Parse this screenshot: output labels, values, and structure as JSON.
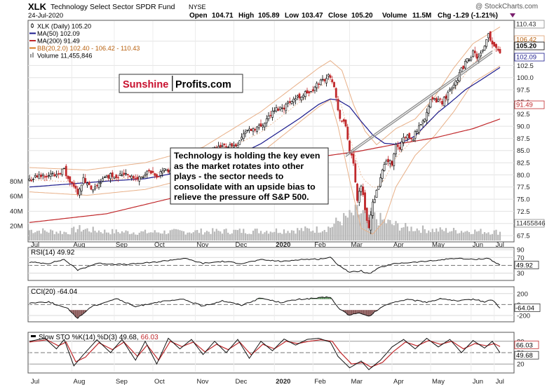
{
  "header": {
    "symbol": "XLK",
    "fund_name": "Technology Select Sector SPDR Fund",
    "exchange": "NYSE",
    "date": "24-Jul-2020",
    "watermark": "@ StockCharts.com",
    "ohlc": {
      "open_label": "Open",
      "open": "104.71",
      "high_label": "High",
      "high": "105.89",
      "low_label": "Low",
      "low": "103.47",
      "close_label": "Close",
      "close": "105.20",
      "volume_label": "Volume",
      "volume": "11.5M",
      "chg_label": "Chg",
      "chg": "-1.29 (-1.21%)"
    }
  },
  "legend": [
    {
      "label": "XLK (Daily) 105.20",
      "color": "#000000",
      "marker": "candle"
    },
    {
      "label": "MA(50) 102.09",
      "color": "#1a1a8c",
      "marker": "line"
    },
    {
      "label": "MA(200) 91.49",
      "color": "#c0282b",
      "marker": "line"
    },
    {
      "label": "BB(20,2.0) 102.40 - 106.42 - 110.43",
      "color": "#d97a1e",
      "marker": "line"
    },
    {
      "label": "Volume 11,455,846",
      "color": "#808080",
      "marker": "bar"
    }
  ],
  "brand": {
    "part1": "Sunshine",
    "part2": "Profits.com",
    "color1": "#c8102e",
    "color2": "#000000"
  },
  "annotation": "Technology is holding the key even as the market rotates into other plays - the sector needs to consolidate with an upside bias to relieve the pressure off S&P 500.",
  "colors": {
    "up_candle": "#000000",
    "down_candle": "#c0282b",
    "ma50": "#1a1a8c",
    "ma200": "#c0282b",
    "bb": "#e0a070",
    "volume": "#b8b8b8",
    "osc_fill": "#3a7d3a",
    "osc_fill_neg": "#7a3a3a"
  },
  "chart_data": [
    {
      "type": "candlestick",
      "title": "XLK Technology Select Sector SPDR Fund NYSE",
      "x_labels": [
        "Jul",
        "Aug",
        "Sep",
        "Oct",
        "Nov",
        "Dec",
        "2020",
        "Feb",
        "Mar",
        "Apr",
        "May",
        "Jun",
        "Jul"
      ],
      "y_ticks": [
        67.5,
        70.0,
        72.5,
        75.0,
        77.5,
        80.0,
        82.5,
        85.0,
        87.5,
        90.0,
        92.5,
        95.0,
        97.5,
        100.0,
        102.5,
        107.5
      ],
      "y_tick_labels": [
        "67.5",
        "70.0",
        "72.5",
        "75.0",
        "77.5",
        "80.0",
        "82.5",
        "85.0",
        "87.5",
        "90.0",
        "92.5",
        "95.0",
        "97.5",
        "100.0",
        "102.5",
        "107.5"
      ],
      "ylim": [
        66.5,
        111.5
      ],
      "right_tags": [
        {
          "label": "110.43",
          "value": 110.43,
          "color": "#ffffff"
        },
        {
          "label": "106.42",
          "value": 106.42,
          "color": "#ffffff"
        },
        {
          "label": "105.20",
          "value": 105.2,
          "color": "#ffffff"
        },
        {
          "label": "102.09",
          "value": 102.09,
          "color": "#ffffff"
        },
        {
          "label": "91.49",
          "value": 91.49,
          "color": "#ffffff"
        },
        {
          "label": "11455846",
          "value": 67.8,
          "color": "#ffffff"
        }
      ],
      "volume_axis_labels": [
        "80M",
        "60M",
        "40M",
        "20M"
      ],
      "close_anchors": [
        [
          0,
          79
        ],
        [
          3,
          79.5
        ],
        [
          8,
          80
        ],
        [
          13,
          80
        ],
        [
          16,
          80.7
        ],
        [
          18,
          81
        ],
        [
          20,
          79
        ],
        [
          25,
          76.5
        ],
        [
          28,
          79
        ],
        [
          33,
          76.5
        ],
        [
          36,
          78.5
        ],
        [
          42,
          80
        ],
        [
          46,
          79.8
        ],
        [
          50,
          80.5
        ],
        [
          55,
          79
        ],
        [
          62,
          80.5
        ],
        [
          66,
          79.3
        ],
        [
          70,
          81.5
        ],
        [
          74,
          80
        ],
        [
          78,
          82.5
        ],
        [
          82,
          83.5
        ],
        [
          88,
          84
        ],
        [
          90,
          83.5
        ],
        [
          95,
          85
        ],
        [
          102,
          86
        ],
        [
          107,
          86
        ],
        [
          112,
          89
        ],
        [
          116,
          89.5
        ],
        [
          120,
          90
        ],
        [
          124,
          92
        ],
        [
          128,
          93.5
        ],
        [
          132,
          94
        ],
        [
          136,
          95.5
        ],
        [
          140,
          96
        ],
        [
          144,
          97
        ],
        [
          146,
          96.8
        ],
        [
          150,
          99
        ],
        [
          154,
          100
        ],
        [
          156,
          100.5
        ],
        [
          158,
          98.5
        ],
        [
          160,
          93
        ],
        [
          162,
          91
        ],
        [
          164,
          90
        ],
        [
          166,
          85
        ],
        [
          168,
          82
        ],
        [
          170,
          75
        ],
        [
          172,
          78
        ],
        [
          174,
          73
        ],
        [
          176,
          69
        ],
        [
          178,
          74
        ],
        [
          180,
          77
        ],
        [
          182,
          79
        ],
        [
          184,
          82
        ],
        [
          186,
          83
        ],
        [
          188,
          82
        ],
        [
          190,
          86
        ],
        [
          192,
          85.5
        ],
        [
          194,
          87.5
        ],
        [
          196,
          88
        ],
        [
          198,
          87
        ],
        [
          200,
          88.5
        ],
        [
          202,
          90
        ],
        [
          205,
          92
        ],
        [
          208,
          95
        ],
        [
          212,
          95.5
        ],
        [
          214,
          95
        ],
        [
          218,
          97.5
        ],
        [
          222,
          100
        ],
        [
          226,
          103
        ],
        [
          230,
          105
        ],
        [
          233,
          104
        ],
        [
          236,
          106
        ],
        [
          238,
          109
        ],
        [
          240,
          107
        ],
        [
          242,
          106.5
        ],
        [
          244,
          105.2
        ]
      ],
      "ma50_anchors": [
        [
          0,
          77.5
        ],
        [
          40,
          78.7
        ],
        [
          60,
          79.2
        ],
        [
          80,
          80.7
        ],
        [
          100,
          82.6
        ],
        [
          120,
          86.4
        ],
        [
          140,
          91.6
        ],
        [
          150,
          94.5
        ],
        [
          156,
          95.6
        ],
        [
          160,
          95.4
        ],
        [
          166,
          94
        ],
        [
          172,
          91
        ],
        [
          178,
          88.2
        ],
        [
          184,
          86.5
        ],
        [
          190,
          86.3
        ],
        [
          195,
          87
        ],
        [
          200,
          88
        ],
        [
          206,
          90.5
        ],
        [
          212,
          92.9
        ],
        [
          218,
          94.8
        ],
        [
          226,
          97.5
        ],
        [
          234,
          99.5
        ],
        [
          244,
          102.09
        ]
      ],
      "ma200_anchors": [
        [
          0,
          70.2
        ],
        [
          40,
          72
        ],
        [
          80,
          75.8
        ],
        [
          120,
          80.5
        ],
        [
          150,
          83.7
        ],
        [
          170,
          84.8
        ],
        [
          190,
          86.3
        ],
        [
          210,
          87.6
        ],
        [
          230,
          89.5
        ],
        [
          244,
          91.49
        ]
      ],
      "bb_upper_anchors": [
        [
          0,
          81.5
        ],
        [
          30,
          81
        ],
        [
          60,
          82.5
        ],
        [
          90,
          85.7
        ],
        [
          120,
          93
        ],
        [
          150,
          102
        ],
        [
          156,
          103.5
        ],
        [
          162,
          101.5
        ],
        [
          168,
          94.5
        ],
        [
          174,
          89
        ],
        [
          180,
          86.2
        ],
        [
          190,
          89.5
        ],
        [
          200,
          91.5
        ],
        [
          210,
          96
        ],
        [
          220,
          102
        ],
        [
          230,
          107
        ],
        [
          244,
          110.43
        ]
      ],
      "bb_lower_anchors": [
        [
          0,
          76.5
        ],
        [
          30,
          75.8
        ],
        [
          60,
          77
        ],
        [
          90,
          80
        ],
        [
          120,
          84.5
        ],
        [
          150,
          94
        ],
        [
          156,
          95.5
        ],
        [
          160,
          90
        ],
        [
          166,
          79
        ],
        [
          172,
          69
        ],
        [
          178,
          67.8
        ],
        [
          184,
          70.5
        ],
        [
          190,
          77.5
        ],
        [
          200,
          84
        ],
        [
          210,
          88
        ],
        [
          220,
          93
        ],
        [
          230,
          99
        ],
        [
          244,
          102.4
        ]
      ],
      "trendline": {
        "from": [
          164,
          84.2
        ],
        "to": [
          240,
          105.5
        ]
      },
      "volume_millions_anchors": [
        [
          0,
          14
        ],
        [
          20,
          11
        ],
        [
          25,
          16
        ],
        [
          40,
          12
        ],
        [
          60,
          11
        ],
        [
          80,
          12
        ],
        [
          120,
          13
        ],
        [
          150,
          15
        ],
        [
          156,
          18
        ],
        [
          160,
          26
        ],
        [
          166,
          32
        ],
        [
          170,
          38
        ],
        [
          176,
          34
        ],
        [
          180,
          30
        ],
        [
          188,
          22
        ],
        [
          196,
          17
        ],
        [
          210,
          14
        ],
        [
          226,
          13
        ],
        [
          244,
          11.46
        ]
      ]
    },
    {
      "type": "line",
      "title": "RSI(14) 49.92",
      "y_ticks": [
        30,
        50,
        70,
        90
      ],
      "ylim": [
        15,
        92
      ],
      "right_tag": "49.92",
      "anchors": [
        [
          0,
          58
        ],
        [
          10,
          55
        ],
        [
          18,
          65
        ],
        [
          25,
          38
        ],
        [
          35,
          55
        ],
        [
          50,
          52
        ],
        [
          65,
          58
        ],
        [
          80,
          68
        ],
        [
          90,
          55
        ],
        [
          100,
          60
        ],
        [
          110,
          55
        ],
        [
          120,
          64
        ],
        [
          132,
          60
        ],
        [
          140,
          65
        ],
        [
          150,
          66
        ],
        [
          156,
          70
        ],
        [
          160,
          52
        ],
        [
          166,
          32
        ],
        [
          172,
          36
        ],
        [
          176,
          28
        ],
        [
          182,
          45
        ],
        [
          190,
          55
        ],
        [
          200,
          58
        ],
        [
          210,
          62
        ],
        [
          220,
          68
        ],
        [
          230,
          65
        ],
        [
          238,
          68
        ],
        [
          244,
          49.92
        ]
      ]
    },
    {
      "type": "line",
      "title": "CCI(20) -64.04",
      "y_ticks": [
        -200,
        0,
        200
      ],
      "ylim": [
        -290,
        300
      ],
      "right_tag": "-64.04",
      "anchors": [
        [
          0,
          30
        ],
        [
          10,
          50
        ],
        [
          20,
          -80
        ],
        [
          25,
          -250
        ],
        [
          32,
          -40
        ],
        [
          45,
          110
        ],
        [
          55,
          -40
        ],
        [
          65,
          40
        ],
        [
          80,
          95
        ],
        [
          90,
          -30
        ],
        [
          100,
          70
        ],
        [
          110,
          -10
        ],
        [
          120,
          120
        ],
        [
          130,
          40
        ],
        [
          140,
          95
        ],
        [
          150,
          120
        ],
        [
          156,
          140
        ],
        [
          160,
          -60
        ],
        [
          166,
          -200
        ],
        [
          170,
          -150
        ],
        [
          176,
          -220
        ],
        [
          182,
          -60
        ],
        [
          188,
          40
        ],
        [
          196,
          90
        ],
        [
          206,
          45
        ],
        [
          214,
          110
        ],
        [
          222,
          60
        ],
        [
          230,
          100
        ],
        [
          236,
          50
        ],
        [
          240,
          90
        ],
        [
          244,
          -64.04
        ]
      ]
    },
    {
      "type": "line",
      "title": "Slow STO %K(14) %D(3) 49.68, 66.03",
      "series_labels": [
        "Slow STO %K(14) %D(3) 49.68,",
        "66.03"
      ],
      "series_colors": [
        "#000000",
        "#c0282b"
      ],
      "y_ticks": [
        20,
        50,
        80
      ],
      "ylim": [
        0,
        100
      ],
      "right_tags": [
        "66.03",
        "49.68"
      ],
      "k_anchors": [
        [
          0,
          80
        ],
        [
          8,
          88
        ],
        [
          14,
          60
        ],
        [
          18,
          85
        ],
        [
          23,
          15
        ],
        [
          28,
          45
        ],
        [
          35,
          84
        ],
        [
          42,
          50
        ],
        [
          48,
          85
        ],
        [
          55,
          30
        ],
        [
          60,
          80
        ],
        [
          66,
          20
        ],
        [
          72,
          88
        ],
        [
          78,
          60
        ],
        [
          84,
          85
        ],
        [
          90,
          45
        ],
        [
          96,
          80
        ],
        [
          102,
          50
        ],
        [
          108,
          85
        ],
        [
          114,
          35
        ],
        [
          120,
          80
        ],
        [
          126,
          55
        ],
        [
          132,
          86
        ],
        [
          138,
          70
        ],
        [
          144,
          85
        ],
        [
          150,
          88
        ],
        [
          156,
          78
        ],
        [
          160,
          40
        ],
        [
          166,
          10
        ],
        [
          172,
          28
        ],
        [
          176,
          5
        ],
        [
          182,
          30
        ],
        [
          188,
          65
        ],
        [
          194,
          85
        ],
        [
          200,
          60
        ],
        [
          206,
          88
        ],
        [
          212,
          65
        ],
        [
          218,
          85
        ],
        [
          224,
          50
        ],
        [
          230,
          82
        ],
        [
          236,
          62
        ],
        [
          240,
          80
        ],
        [
          244,
          49.68
        ]
      ],
      "d_anchors": [
        [
          0,
          78
        ],
        [
          9,
          84
        ],
        [
          15,
          68
        ],
        [
          19,
          78
        ],
        [
          24,
          26
        ],
        [
          29,
          38
        ],
        [
          36,
          76
        ],
        [
          43,
          58
        ],
        [
          49,
          78
        ],
        [
          56,
          40
        ],
        [
          61,
          70
        ],
        [
          67,
          30
        ],
        [
          73,
          80
        ],
        [
          79,
          66
        ],
        [
          85,
          78
        ],
        [
          91,
          52
        ],
        [
          97,
          72
        ],
        [
          103,
          58
        ],
        [
          109,
          78
        ],
        [
          115,
          44
        ],
        [
          121,
          72
        ],
        [
          127,
          60
        ],
        [
          133,
          80
        ],
        [
          139,
          74
        ],
        [
          145,
          80
        ],
        [
          151,
          84
        ],
        [
          157,
          80
        ],
        [
          161,
          52
        ],
        [
          167,
          20
        ],
        [
          173,
          24
        ],
        [
          177,
          12
        ],
        [
          183,
          24
        ],
        [
          189,
          54
        ],
        [
          195,
          78
        ],
        [
          201,
          68
        ],
        [
          207,
          82
        ],
        [
          213,
          72
        ],
        [
          219,
          80
        ],
        [
          225,
          60
        ],
        [
          231,
          74
        ],
        [
          237,
          68
        ],
        [
          241,
          74
        ],
        [
          244,
          66.03
        ]
      ]
    }
  ]
}
